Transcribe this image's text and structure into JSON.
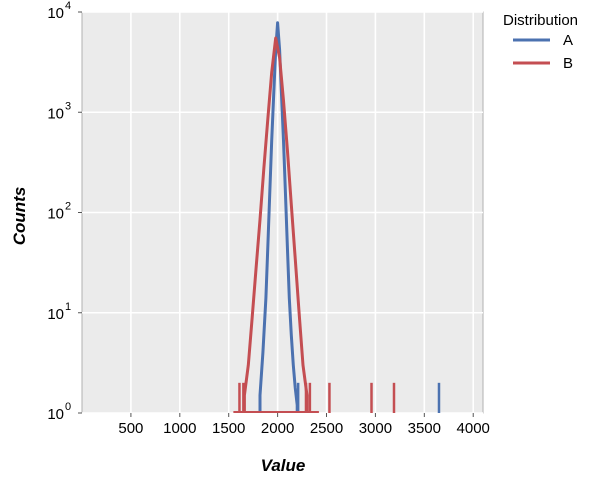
{
  "chart_data": {
    "type": "line",
    "xlabel": "Value",
    "ylabel": "Counts",
    "xlim": [
      0,
      4100
    ],
    "ylim": [
      1,
      10000
    ],
    "yscale": "log",
    "grid": true,
    "x_ticks": [
      500,
      1000,
      1500,
      2000,
      2500,
      3000,
      3500,
      4000
    ],
    "y_ticks": [
      {
        "base": "10",
        "exp": "0",
        "value": 1
      },
      {
        "base": "10",
        "exp": "1",
        "value": 10
      },
      {
        "base": "10",
        "exp": "2",
        "value": 100
      },
      {
        "base": "10",
        "exp": "3",
        "value": 1000
      },
      {
        "base": "10",
        "exp": "4",
        "value": 10000
      }
    ],
    "legend": {
      "title": "Distribution",
      "placement": "outside-right"
    },
    "colors": {
      "A": "#4c72b0",
      "B": "#c44e52",
      "panel": "#ebebeb",
      "grid": "#ffffff"
    },
    "series": [
      {
        "name": "A",
        "color": "#4c72b0",
        "peak_x": 2000,
        "peak_y": 7800,
        "x_range": [
          1805,
          2215
        ],
        "x": [
          1820,
          1850,
          1880,
          1900,
          1920,
          1940,
          1960,
          1980,
          2000,
          2020,
          2040,
          2060,
          2080,
          2100,
          2120,
          2140,
          2160,
          2180,
          2200
        ],
        "y": [
          1.5,
          4,
          14,
          45,
          160,
          520,
          1500,
          4200,
          7800,
          4200,
          1500,
          520,
          160,
          45,
          14,
          6,
          3,
          1.8,
          1.2
        ],
        "outliers": [
          {
            "x": 3650,
            "y": 2
          },
          {
            "x": 2210,
            "y": 2
          }
        ]
      },
      {
        "name": "B",
        "color": "#c44e52",
        "peak_x": 1980,
        "peak_y": 5500,
        "x_range": [
          1650,
          2320
        ],
        "x": [
          1660,
          1700,
          1740,
          1780,
          1820,
          1860,
          1900,
          1940,
          1980,
          2020,
          2060,
          2100,
          2140,
          2180,
          2220,
          2260,
          2300
        ],
        "y": [
          1.5,
          3,
          9,
          28,
          85,
          280,
          850,
          2500,
          5500,
          3500,
          1300,
          420,
          120,
          35,
          10,
          3,
          1.5
        ],
        "outliers": [
          {
            "x": 1610,
            "y": 2
          },
          {
            "x": 1650,
            "y": 2
          },
          {
            "x": 2290,
            "y": 2
          },
          {
            "x": 2330,
            "y": 2
          },
          {
            "x": 2530,
            "y": 2
          },
          {
            "x": 2960,
            "y": 2
          },
          {
            "x": 3190,
            "y": 2
          }
        ]
      }
    ]
  }
}
